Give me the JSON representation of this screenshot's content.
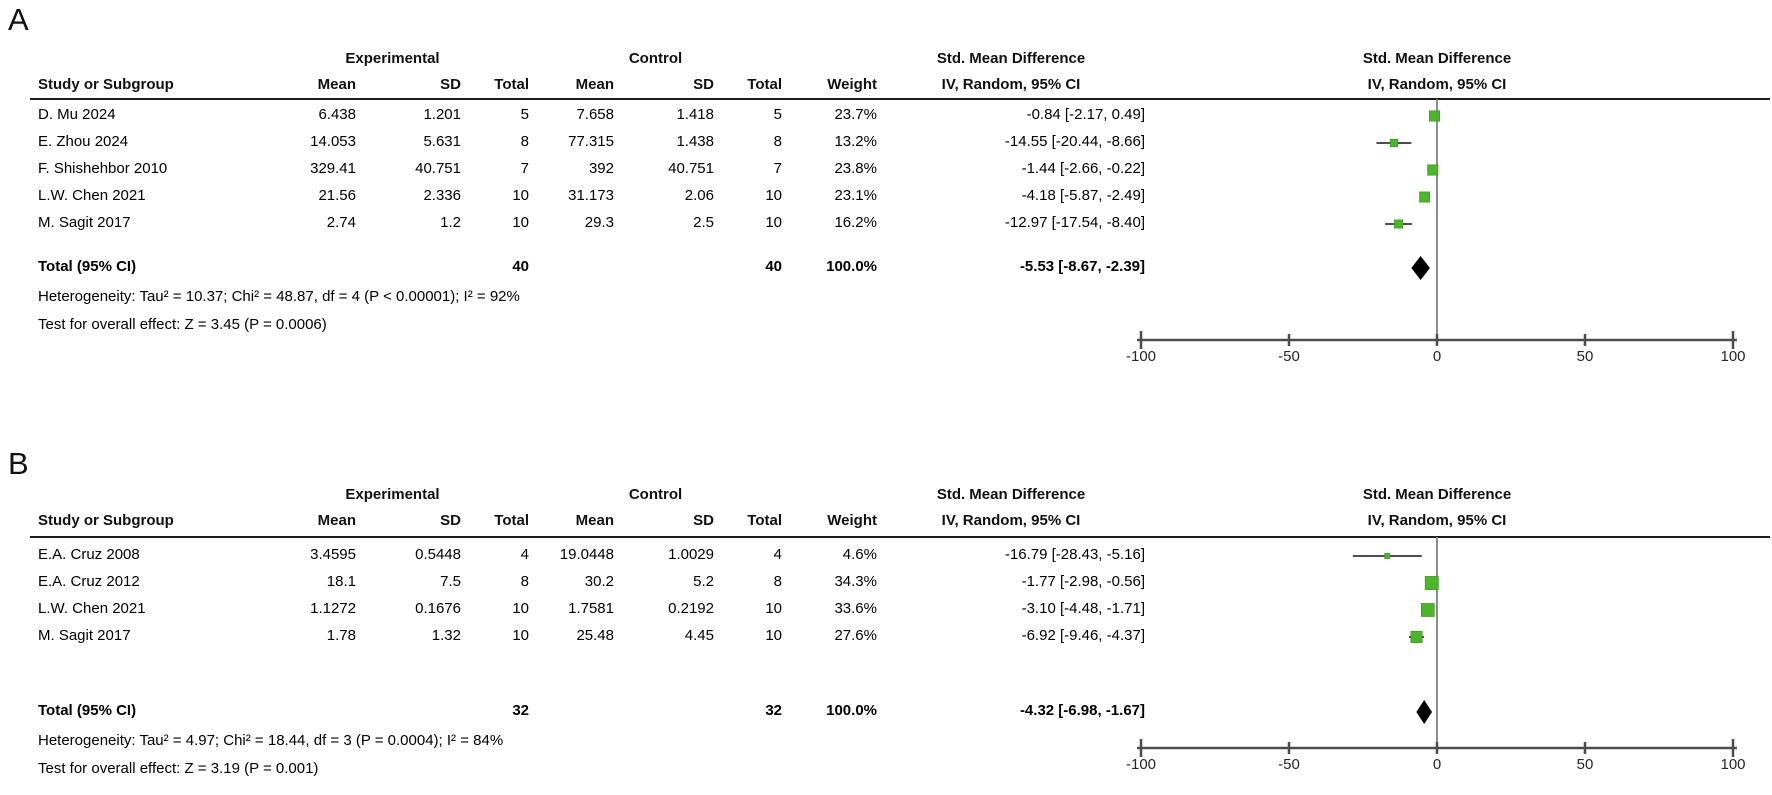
{
  "figure_type": "forest_plot_meta_analysis",
  "colors": {
    "marker_green": "#4cb52c",
    "marker_border": "#3a9220",
    "diamond_black": "#000000",
    "axis_gray": "#4d4d4d",
    "zero_line_gray": "#8c8c8c",
    "whisker_gray": "#4d4d4d",
    "divider_black": "#1c1c1c"
  },
  "table_headers": {
    "study": "Study or Subgroup",
    "experimental": "Experimental",
    "control": "Control",
    "mean": "Mean",
    "sd": "SD",
    "total": "Total",
    "weight": "Weight",
    "smd": "Std. Mean Difference",
    "ci_method": "IV, Random, 95% CI"
  },
  "chart_data": [
    {
      "type": "forest",
      "panel_label": "A",
      "effect_measure": "Std. Mean Difference",
      "model": "IV, Random, 95% CI",
      "axis": {
        "min": -100,
        "max": 100,
        "ticks": [
          -100,
          -50,
          0,
          50,
          100
        ]
      },
      "studies": [
        {
          "study": "D. Mu 2024",
          "exp_mean": "6.438",
          "exp_sd": "1.201",
          "exp_total": "5",
          "ctl_mean": "7.658",
          "ctl_sd": "1.418",
          "ctl_total": "5",
          "weight": "23.7%",
          "weight_pct": 23.7,
          "ci_text": "-0.84 [-2.17, 0.49]",
          "est": -0.84,
          "lo": -2.17,
          "hi": 0.49
        },
        {
          "study": "E. Zhou 2024",
          "exp_mean": "14.053",
          "exp_sd": "5.631",
          "exp_total": "8",
          "ctl_mean": "77.315",
          "ctl_sd": "1.438",
          "ctl_total": "8",
          "weight": "13.2%",
          "weight_pct": 13.2,
          "ci_text": "-14.55 [-20.44, -8.66]",
          "est": -14.55,
          "lo": -20.44,
          "hi": -8.66
        },
        {
          "study": "F. Shishehbor 2010",
          "exp_mean": "329.41",
          "exp_sd": "40.751",
          "exp_total": "7",
          "ctl_mean": "392",
          "ctl_sd": "40.751",
          "ctl_total": "7",
          "weight": "23.8%",
          "weight_pct": 23.8,
          "ci_text": "-1.44 [-2.66, -0.22]",
          "est": -1.44,
          "lo": -2.66,
          "hi": -0.22
        },
        {
          "study": "L.W. Chen 2021",
          "exp_mean": "21.56",
          "exp_sd": "2.336",
          "exp_total": "10",
          "ctl_mean": "31.173",
          "ctl_sd": "2.06",
          "ctl_total": "10",
          "weight": "23.1%",
          "weight_pct": 23.1,
          "ci_text": "-4.18 [-5.87, -2.49]",
          "est": -4.18,
          "lo": -5.87,
          "hi": -2.49
        },
        {
          "study": "M. Sagit 2017",
          "exp_mean": "2.74",
          "exp_sd": "1.2",
          "exp_total": "10",
          "ctl_mean": "29.3",
          "ctl_sd": "2.5",
          "ctl_total": "10",
          "weight": "16.2%",
          "weight_pct": 16.2,
          "ci_text": "-12.97 [-17.54, -8.40]",
          "est": -12.97,
          "lo": -17.54,
          "hi": -8.4
        }
      ],
      "total": {
        "label": "Total (95% CI)",
        "exp_total": "40",
        "ctl_total": "40",
        "weight": "100.0%",
        "ci_text": "-5.53 [-8.67, -2.39]",
        "est": -5.53,
        "lo": -8.67,
        "hi": -2.39
      },
      "heterogeneity": "Heterogeneity: Tau² = 10.37; Chi² = 48.87, df = 4 (P < 0.00001); I² = 92%",
      "overall_effect": "Test for overall effect: Z = 3.45 (P = 0.0006)"
    },
    {
      "type": "forest",
      "panel_label": "B",
      "effect_measure": "Std. Mean Difference",
      "model": "IV, Random, 95% CI",
      "axis": {
        "min": -100,
        "max": 100,
        "ticks": [
          -100,
          -50,
          0,
          50,
          100
        ]
      },
      "studies": [
        {
          "study": "E.A. Cruz 2008",
          "exp_mean": "3.4595",
          "exp_sd": "0.5448",
          "exp_total": "4",
          "ctl_mean": "19.0448",
          "ctl_sd": "1.0029",
          "ctl_total": "4",
          "weight": "4.6%",
          "weight_pct": 4.6,
          "ci_text": "-16.79 [-28.43, -5.16]",
          "est": -16.79,
          "lo": -28.43,
          "hi": -5.16
        },
        {
          "study": "E.A. Cruz 2012",
          "exp_mean": "18.1",
          "exp_sd": "7.5",
          "exp_total": "8",
          "ctl_mean": "30.2",
          "ctl_sd": "5.2",
          "ctl_total": "8",
          "weight": "34.3%",
          "weight_pct": 34.3,
          "ci_text": "-1.77 [-2.98, -0.56]",
          "est": -1.77,
          "lo": -2.98,
          "hi": -0.56
        },
        {
          "study": "L.W. Chen 2021",
          "exp_mean": "1.1272",
          "exp_sd": "0.1676",
          "exp_total": "10",
          "ctl_mean": "1.7581",
          "ctl_sd": "0.2192",
          "ctl_total": "10",
          "weight": "33.6%",
          "weight_pct": 33.6,
          "ci_text": "-3.10 [-4.48, -1.71]",
          "est": -3.1,
          "lo": -4.48,
          "hi": -1.71
        },
        {
          "study": "M. Sagit 2017",
          "exp_mean": "1.78",
          "exp_sd": "1.32",
          "exp_total": "10",
          "ctl_mean": "25.48",
          "ctl_sd": "4.45",
          "ctl_total": "10",
          "weight": "27.6%",
          "weight_pct": 27.6,
          "ci_text": "-6.92 [-9.46, -4.37]",
          "est": -6.92,
          "lo": -9.46,
          "hi": -4.37
        }
      ],
      "total": {
        "label": "Total (95% CI)",
        "exp_total": "32",
        "ctl_total": "32",
        "weight": "100.0%",
        "ci_text": "-4.32 [-6.98, -1.67]",
        "est": -4.32,
        "lo": -6.98,
        "hi": -1.67
      },
      "heterogeneity": "Heterogeneity: Tau² = 4.97; Chi² = 18.44, df = 3 (P = 0.0004); I² = 84%",
      "overall_effect": "Test for overall effect: Z = 3.19 (P = 0.001)"
    }
  ]
}
